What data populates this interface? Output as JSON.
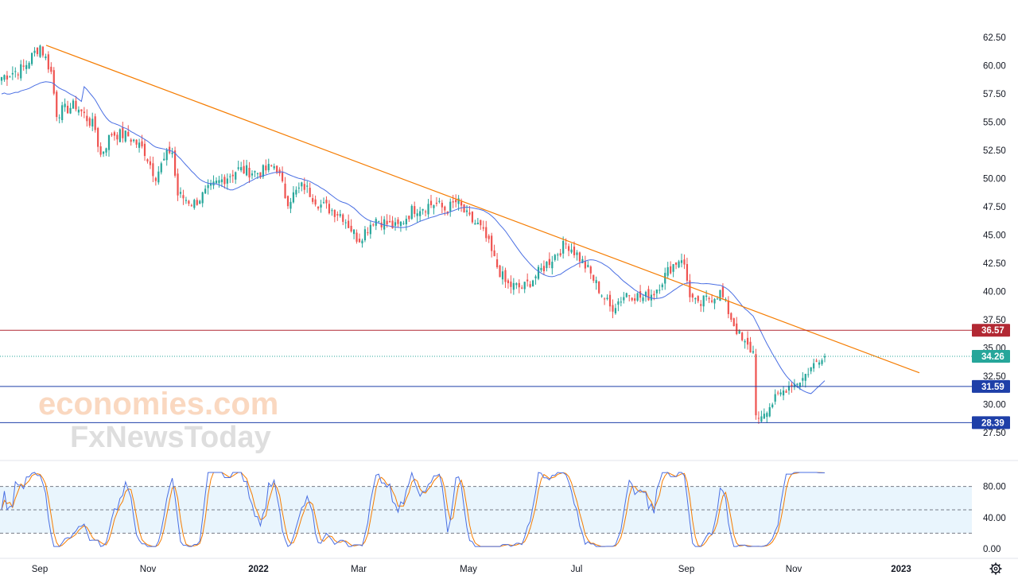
{
  "chart_data": {
    "type": "candlestick",
    "price_axis": {
      "ticks": [
        "62.50",
        "60.00",
        "57.50",
        "55.00",
        "52.50",
        "50.00",
        "47.50",
        "45.00",
        "42.50",
        "40.00",
        "37.50",
        "35.00",
        "32.50",
        "30.00",
        "27.50"
      ],
      "min": 26.5,
      "max": 63.5
    },
    "time_axis": {
      "labels": [
        {
          "text": "Sep",
          "bold": false
        },
        {
          "text": "Nov",
          "bold": false
        },
        {
          "text": "2022",
          "bold": true
        },
        {
          "text": "Mar",
          "bold": false
        },
        {
          "text": "May",
          "bold": false
        },
        {
          "text": "Jul",
          "bold": false
        },
        {
          "text": "Sep",
          "bold": false
        },
        {
          "text": "Nov",
          "bold": false
        },
        {
          "text": "2023",
          "bold": true
        }
      ]
    },
    "key_points": [
      {
        "date": "Sep 2021",
        "close": 59.0
      },
      {
        "date": "Sep 2021 high",
        "close": 61.8
      },
      {
        "date": "Oct 2021",
        "close": 55.5
      },
      {
        "date": "Nov 2021",
        "close": 53.5
      },
      {
        "date": "Dec 2021",
        "close": 48.0
      },
      {
        "date": "Jan 2022",
        "close": 50.5
      },
      {
        "date": "Feb 2022",
        "close": 48.0
      },
      {
        "date": "Mar 2022",
        "close": 46.0
      },
      {
        "date": "Apr 2022",
        "close": 47.8
      },
      {
        "date": "May 2022",
        "close": 40.0
      },
      {
        "date": "Jun 2022",
        "close": 44.5
      },
      {
        "date": "Jul 2022",
        "close": 39.5
      },
      {
        "date": "Aug 2022",
        "close": 43.0
      },
      {
        "date": "Aug 2022 low",
        "close": 37.8
      },
      {
        "date": "Sep 2022",
        "close": 35.5
      },
      {
        "date": "Oct 2022 low",
        "close": 28.4
      },
      {
        "date": "Nov 2022",
        "close": 32.0
      },
      {
        "date": "Nov 2022 last",
        "close": 34.26
      }
    ],
    "moving_average": {
      "color": "#4a6fe3"
    },
    "trendline": {
      "color": "#f57c00",
      "from": {
        "date": "Sep 2021",
        "price": 61.8
      },
      "to": {
        "date": "Dec 2022",
        "price": 32.8
      }
    },
    "horizontal_levels": [
      {
        "price": 36.57,
        "label": "36.57",
        "color": "#b22833"
      },
      {
        "price": 31.59,
        "label": "31.59",
        "color": "#1e3fa8"
      },
      {
        "price": 28.39,
        "label": "28.39",
        "color": "#1e3fa8"
      }
    ],
    "last_price": {
      "label": "34.26",
      "color": "#26a69a"
    },
    "colors": {
      "up": "#26a69a",
      "down": "#ef5350"
    },
    "grid": false,
    "oscillator": {
      "type": "stochastic",
      "ticks": [
        "80.00",
        "40.00",
        "0.00"
      ],
      "band_upper": 80,
      "band_mid": 50,
      "band_lower": 20,
      "k_color": "#4a6fe3",
      "d_color": "#f57c00",
      "band_fill": "#e3f2fd"
    }
  },
  "watermark": {
    "line1": "economies.com",
    "line2": "FxNewsToday"
  },
  "settings_icon": "gear-icon"
}
